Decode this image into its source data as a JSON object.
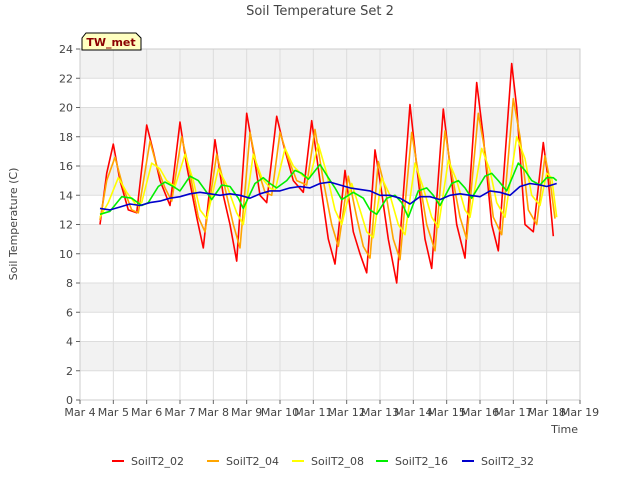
{
  "chart_data": {
    "type": "line",
    "title": "Soil Temperature Set 2",
    "xlabel": "Time",
    "ylabel": "Soil Temperature (C)",
    "station_tag": "TW_met",
    "xlim": [
      4,
      19
    ],
    "ylim": [
      0,
      24
    ],
    "x_ticks": [
      4,
      5,
      6,
      7,
      8,
      9,
      10,
      11,
      12,
      13,
      14,
      15,
      16,
      17,
      18,
      19
    ],
    "x_tick_labels": [
      "Mar 4",
      "Mar 5",
      "Mar 6",
      "Mar 7",
      "Mar 8",
      "Mar 9",
      "Mar 10",
      "Mar 11",
      "Mar 12",
      "Mar 13",
      "Mar 14",
      "Mar 15",
      "Mar 16",
      "Mar 17",
      "Mar 18",
      "Mar 19"
    ],
    "y_ticks": [
      0,
      2,
      4,
      6,
      8,
      10,
      12,
      14,
      16,
      18,
      20,
      22,
      24
    ],
    "y_tick_labels": [
      "0",
      "2",
      "4",
      "6",
      "8",
      "10",
      "12",
      "14",
      "16",
      "18",
      "20",
      "22",
      "24"
    ],
    "grid": true,
    "legend_position": "bottom",
    "series": [
      {
        "name": "SoilT2_02",
        "color": "#ff0000",
        "points": [
          [
            4.6,
            12.0
          ],
          [
            4.8,
            15.5
          ],
          [
            5.0,
            17.5
          ],
          [
            5.2,
            15.0
          ],
          [
            5.45,
            13.0
          ],
          [
            5.7,
            12.8
          ],
          [
            6.0,
            18.8
          ],
          [
            6.2,
            17.0
          ],
          [
            6.4,
            15.0
          ],
          [
            6.7,
            13.3
          ],
          [
            7.0,
            19.0
          ],
          [
            7.2,
            16.0
          ],
          [
            7.5,
            12.5
          ],
          [
            7.7,
            10.4
          ],
          [
            8.05,
            17.8
          ],
          [
            8.3,
            14.0
          ],
          [
            8.5,
            12.0
          ],
          [
            8.7,
            9.5
          ],
          [
            9.0,
            19.6
          ],
          [
            9.2,
            17.0
          ],
          [
            9.4,
            14.0
          ],
          [
            9.6,
            13.5
          ],
          [
            9.9,
            19.4
          ],
          [
            10.1,
            17.5
          ],
          [
            10.4,
            15.0
          ],
          [
            10.7,
            14.2
          ],
          [
            10.95,
            19.1
          ],
          [
            11.2,
            15.0
          ],
          [
            11.45,
            11.0
          ],
          [
            11.65,
            9.3
          ],
          [
            11.95,
            15.7
          ],
          [
            12.2,
            11.5
          ],
          [
            12.4,
            10.0
          ],
          [
            12.6,
            8.7
          ],
          [
            12.85,
            17.1
          ],
          [
            13.0,
            15.0
          ],
          [
            13.25,
            11.0
          ],
          [
            13.5,
            8.0
          ],
          [
            13.9,
            20.2
          ],
          [
            14.1,
            16.0
          ],
          [
            14.35,
            11.0
          ],
          [
            14.55,
            9.0
          ],
          [
            14.9,
            19.9
          ],
          [
            15.1,
            16.0
          ],
          [
            15.3,
            12.0
          ],
          [
            15.55,
            9.7
          ],
          [
            15.9,
            21.7
          ],
          [
            16.1,
            18.0
          ],
          [
            16.35,
            12.0
          ],
          [
            16.55,
            10.2
          ],
          [
            16.95,
            23.0
          ],
          [
            17.1,
            20.0
          ],
          [
            17.35,
            12.0
          ],
          [
            17.6,
            11.5
          ],
          [
            17.9,
            17.6
          ],
          [
            18.05,
            15.0
          ],
          [
            18.2,
            11.2
          ]
        ]
      },
      {
        "name": "SoilT2_04",
        "color": "#ffa500",
        "points": [
          [
            4.6,
            12.3
          ],
          [
            4.8,
            15.0
          ],
          [
            5.05,
            16.6
          ],
          [
            5.3,
            14.5
          ],
          [
            5.55,
            13.0
          ],
          [
            5.75,
            12.8
          ],
          [
            6.1,
            17.7
          ],
          [
            6.3,
            16.0
          ],
          [
            6.55,
            14.5
          ],
          [
            6.75,
            13.6
          ],
          [
            7.05,
            18.0
          ],
          [
            7.3,
            15.5
          ],
          [
            7.55,
            12.5
          ],
          [
            7.75,
            11.5
          ],
          [
            8.1,
            16.8
          ],
          [
            8.35,
            14.5
          ],
          [
            8.6,
            12.0
          ],
          [
            8.8,
            10.4
          ],
          [
            9.1,
            18.3
          ],
          [
            9.3,
            16.0
          ],
          [
            9.55,
            14.2
          ],
          [
            9.75,
            14.0
          ],
          [
            10.0,
            18.3
          ],
          [
            10.25,
            16.5
          ],
          [
            10.5,
            15.0
          ],
          [
            10.8,
            14.7
          ],
          [
            11.05,
            18.5
          ],
          [
            11.3,
            15.0
          ],
          [
            11.55,
            12.0
          ],
          [
            11.75,
            10.5
          ],
          [
            12.05,
            15.3
          ],
          [
            12.3,
            12.5
          ],
          [
            12.5,
            10.5
          ],
          [
            12.7,
            9.7
          ],
          [
            12.95,
            16.3
          ],
          [
            13.15,
            14.5
          ],
          [
            13.4,
            11.0
          ],
          [
            13.6,
            9.6
          ],
          [
            13.95,
            18.3
          ],
          [
            14.15,
            15.5
          ],
          [
            14.4,
            12.0
          ],
          [
            14.65,
            10.2
          ],
          [
            14.95,
            18.4
          ],
          [
            15.15,
            15.5
          ],
          [
            15.4,
            12.5
          ],
          [
            15.6,
            11.0
          ],
          [
            15.95,
            19.6
          ],
          [
            16.15,
            17.0
          ],
          [
            16.4,
            12.5
          ],
          [
            16.65,
            11.3
          ],
          [
            17.0,
            20.6
          ],
          [
            17.2,
            18.0
          ],
          [
            17.45,
            13.0
          ],
          [
            17.7,
            12.0
          ],
          [
            17.95,
            16.7
          ],
          [
            18.1,
            15.0
          ],
          [
            18.25,
            12.4
          ]
        ]
      },
      {
        "name": "SoilT2_08",
        "color": "#ffff00",
        "points": [
          [
            4.6,
            12.5
          ],
          [
            4.85,
            13.5
          ],
          [
            5.15,
            15.2
          ],
          [
            5.4,
            14.2
          ],
          [
            5.7,
            13.3
          ],
          [
            5.85,
            13.5
          ],
          [
            6.15,
            16.2
          ],
          [
            6.4,
            15.8
          ],
          [
            6.6,
            15.0
          ],
          [
            6.85,
            14.6
          ],
          [
            7.15,
            16.8
          ],
          [
            7.4,
            15.0
          ],
          [
            7.6,
            13.0
          ],
          [
            7.8,
            12.4
          ],
          [
            8.15,
            15.8
          ],
          [
            8.4,
            14.7
          ],
          [
            8.7,
            12.8
          ],
          [
            8.9,
            12.0
          ],
          [
            9.2,
            16.8
          ],
          [
            9.45,
            15.2
          ],
          [
            9.7,
            14.5
          ],
          [
            9.85,
            14.3
          ],
          [
            10.15,
            17.2
          ],
          [
            10.4,
            16.0
          ],
          [
            10.7,
            15.3
          ],
          [
            10.9,
            15.2
          ],
          [
            11.15,
            17.5
          ],
          [
            11.4,
            15.5
          ],
          [
            11.65,
            13.0
          ],
          [
            11.85,
            12.0
          ],
          [
            12.15,
            14.8
          ],
          [
            12.4,
            13.0
          ],
          [
            12.6,
            11.5
          ],
          [
            12.8,
            11.1
          ],
          [
            13.05,
            15.2
          ],
          [
            13.3,
            14.0
          ],
          [
            13.55,
            12.0
          ],
          [
            13.75,
            11.3
          ],
          [
            14.05,
            16.2
          ],
          [
            14.3,
            14.5
          ],
          [
            14.55,
            12.5
          ],
          [
            14.75,
            11.8
          ],
          [
            15.05,
            16.4
          ],
          [
            15.3,
            15.0
          ],
          [
            15.55,
            13.0
          ],
          [
            15.7,
            12.5
          ],
          [
            16.05,
            17.2
          ],
          [
            16.3,
            15.7
          ],
          [
            16.5,
            13.5
          ],
          [
            16.75,
            12.5
          ],
          [
            17.1,
            18.0
          ],
          [
            17.35,
            16.5
          ],
          [
            17.55,
            14.0
          ],
          [
            17.8,
            13.3
          ],
          [
            18.0,
            15.5
          ],
          [
            18.15,
            15.2
          ],
          [
            18.3,
            12.5
          ]
        ]
      },
      {
        "name": "SoilT2_16",
        "color": "#00ee00",
        "points": [
          [
            4.6,
            12.7
          ],
          [
            4.9,
            12.9
          ],
          [
            5.25,
            13.9
          ],
          [
            5.55,
            13.8
          ],
          [
            5.85,
            13.3
          ],
          [
            6.05,
            13.5
          ],
          [
            6.35,
            14.6
          ],
          [
            6.55,
            14.9
          ],
          [
            6.8,
            14.6
          ],
          [
            7.0,
            14.3
          ],
          [
            7.3,
            15.3
          ],
          [
            7.55,
            15.0
          ],
          [
            7.8,
            14.2
          ],
          [
            7.95,
            13.7
          ],
          [
            8.25,
            14.7
          ],
          [
            8.5,
            14.6
          ],
          [
            8.75,
            13.8
          ],
          [
            8.9,
            13.1
          ],
          [
            9.25,
            14.8
          ],
          [
            9.5,
            15.2
          ],
          [
            9.7,
            14.8
          ],
          [
            9.9,
            14.5
          ],
          [
            10.2,
            15.0
          ],
          [
            10.45,
            15.7
          ],
          [
            10.65,
            15.5
          ],
          [
            10.85,
            15.1
          ],
          [
            11.2,
            16.1
          ],
          [
            11.45,
            15.2
          ],
          [
            11.65,
            14.5
          ],
          [
            11.85,
            13.7
          ],
          [
            12.2,
            14.2
          ],
          [
            12.5,
            13.8
          ],
          [
            12.7,
            13.0
          ],
          [
            12.9,
            12.7
          ],
          [
            13.2,
            13.8
          ],
          [
            13.45,
            14.0
          ],
          [
            13.65,
            13.5
          ],
          [
            13.85,
            12.5
          ],
          [
            14.15,
            14.3
          ],
          [
            14.4,
            14.5
          ],
          [
            14.6,
            14.0
          ],
          [
            14.8,
            13.3
          ],
          [
            15.15,
            14.8
          ],
          [
            15.35,
            15.0
          ],
          [
            15.55,
            14.5
          ],
          [
            15.75,
            13.8
          ],
          [
            16.15,
            15.3
          ],
          [
            16.35,
            15.5
          ],
          [
            16.55,
            15.0
          ],
          [
            16.8,
            14.3
          ],
          [
            17.15,
            16.2
          ],
          [
            17.35,
            15.7
          ],
          [
            17.55,
            15.0
          ],
          [
            17.8,
            14.7
          ],
          [
            18.0,
            15.2
          ],
          [
            18.2,
            15.2
          ],
          [
            18.3,
            15.0
          ]
        ]
      },
      {
        "name": "SoilT2_32",
        "color": "#0000cc",
        "points": [
          [
            4.6,
            13.1
          ],
          [
            4.9,
            13.0
          ],
          [
            5.2,
            13.2
          ],
          [
            5.5,
            13.4
          ],
          [
            5.8,
            13.3
          ],
          [
            6.1,
            13.5
          ],
          [
            6.4,
            13.6
          ],
          [
            6.7,
            13.8
          ],
          [
            7.0,
            13.9
          ],
          [
            7.3,
            14.1
          ],
          [
            7.6,
            14.2
          ],
          [
            7.9,
            14.1
          ],
          [
            8.2,
            14.0
          ],
          [
            8.5,
            14.1
          ],
          [
            8.8,
            14.0
          ],
          [
            9.1,
            13.8
          ],
          [
            9.4,
            14.1
          ],
          [
            9.7,
            14.3
          ],
          [
            10.0,
            14.3
          ],
          [
            10.3,
            14.5
          ],
          [
            10.6,
            14.6
          ],
          [
            10.9,
            14.5
          ],
          [
            11.2,
            14.8
          ],
          [
            11.5,
            14.9
          ],
          [
            11.8,
            14.7
          ],
          [
            12.1,
            14.5
          ],
          [
            12.4,
            14.4
          ],
          [
            12.7,
            14.3
          ],
          [
            13.0,
            14.0
          ],
          [
            13.3,
            14.0
          ],
          [
            13.6,
            13.8
          ],
          [
            13.9,
            13.4
          ],
          [
            14.2,
            13.9
          ],
          [
            14.5,
            13.9
          ],
          [
            14.8,
            13.7
          ],
          [
            15.1,
            14.0
          ],
          [
            15.4,
            14.1
          ],
          [
            15.7,
            14.0
          ],
          [
            16.0,
            13.9
          ],
          [
            16.3,
            14.3
          ],
          [
            16.6,
            14.2
          ],
          [
            16.9,
            14.0
          ],
          [
            17.2,
            14.6
          ],
          [
            17.5,
            14.8
          ],
          [
            17.8,
            14.7
          ],
          [
            18.0,
            14.6
          ],
          [
            18.15,
            14.7
          ],
          [
            18.3,
            14.8
          ]
        ]
      }
    ]
  }
}
